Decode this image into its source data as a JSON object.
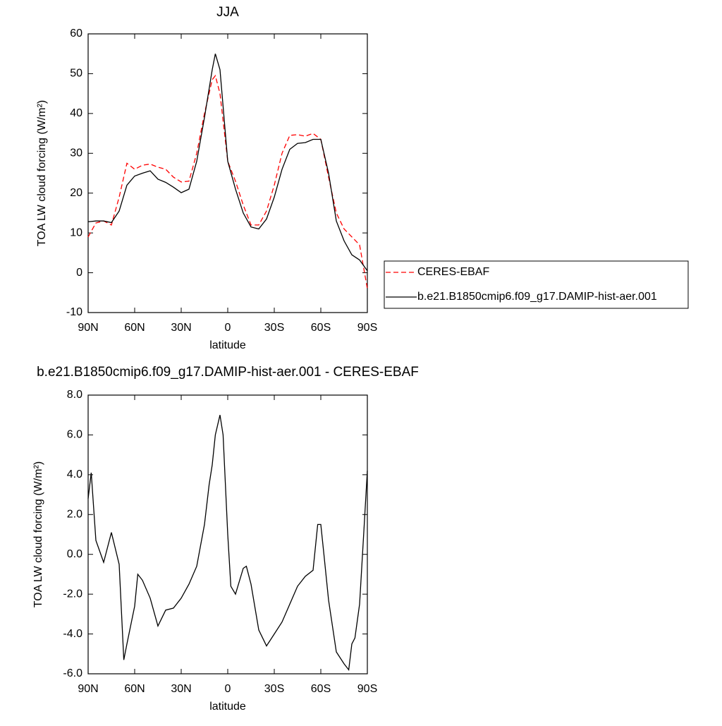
{
  "chart_data": [
    {
      "type": "line",
      "title": "JJA",
      "x_label": "latitude",
      "y_label": "TOA LW cloud forcing (W/m²)",
      "x": [
        90,
        85,
        80,
        75,
        70,
        65,
        60,
        55,
        50,
        45,
        40,
        35,
        30,
        25,
        20,
        15,
        10,
        8,
        5,
        0,
        -5,
        -10,
        -15,
        -20,
        -25,
        -30,
        -35,
        -40,
        -45,
        -50,
        -55,
        -60,
        -65,
        -70,
        -75,
        -80,
        -85,
        -90
      ],
      "xlim": [
        90,
        -90
      ],
      "xticks": [
        {
          "value": 90,
          "label": "90N"
        },
        {
          "value": 60,
          "label": "60N"
        },
        {
          "value": 30,
          "label": "30N"
        },
        0,
        {
          "value": -30,
          "label": "30S"
        },
        {
          "value": -60,
          "label": "60S"
        },
        {
          "value": -90,
          "label": "90S"
        }
      ],
      "ylim": [
        -10,
        60
      ],
      "yticks": [
        -10,
        0,
        10,
        20,
        30,
        40,
        50,
        60
      ],
      "legend": "right",
      "series": [
        {
          "name": "CERES-EBAF",
          "color": "#ff0000",
          "dash": true,
          "values": [
            9,
            12.5,
            13,
            12,
            19,
            27.5,
            26,
            27,
            27.3,
            26.5,
            26,
            24,
            22.8,
            23,
            30,
            40,
            48.5,
            49.5,
            45,
            28,
            23,
            17,
            12,
            12,
            15.5,
            22,
            30,
            34.5,
            34.7,
            34.3,
            35,
            33.5,
            24,
            15,
            11,
            9,
            7,
            -4
          ]
        },
        {
          "name": "b.e21.B1850cmip6.f09_g17.DAMIP-hist-aer.001",
          "color": "#000000",
          "dash": false,
          "values": [
            12.8,
            13,
            13,
            12.6,
            15.5,
            22,
            24.3,
            25,
            25.6,
            23.5,
            22.7,
            21.5,
            20.1,
            21,
            28,
            39,
            51,
            55,
            51,
            28,
            21,
            15,
            11.5,
            11,
            13.5,
            19,
            26,
            31,
            32.5,
            32.7,
            33.5,
            33.5,
            25,
            13,
            8,
            4.5,
            3.2,
            0.5
          ]
        }
      ]
    },
    {
      "type": "line",
      "title": "b.e21.B1850cmip6.f09_g17.DAMIP-hist-aer.001 - CERES-EBAF",
      "x_label": "latitude",
      "y_label": "TOA LW cloud forcing (W/m²)",
      "x": [
        90,
        88,
        85,
        80,
        75,
        70,
        67,
        65,
        60,
        58,
        55,
        50,
        45,
        40,
        35,
        30,
        25,
        20,
        15,
        12,
        10,
        8,
        5,
        3,
        0,
        -2,
        -5,
        -10,
        -12,
        -15,
        -20,
        -25,
        -30,
        -35,
        -40,
        -45,
        -50,
        -55,
        -58,
        -60,
        -62,
        -65,
        -70,
        -75,
        -78,
        -80,
        -82,
        -85,
        -88,
        -90
      ],
      "xlim": [
        90,
        -90
      ],
      "xticks": [
        {
          "value": 90,
          "label": "90N"
        },
        {
          "value": 60,
          "label": "60N"
        },
        {
          "value": 30,
          "label": "30N"
        },
        0,
        {
          "value": -30,
          "label": "30S"
        },
        {
          "value": -60,
          "label": "60S"
        },
        {
          "value": -90,
          "label": "90S"
        }
      ],
      "ylim": [
        -6,
        8
      ],
      "yticks": [
        {
          "value": -6,
          "label": "-6.0"
        },
        {
          "value": -4,
          "label": "-4.0"
        },
        {
          "value": -2,
          "label": "-2.0"
        },
        {
          "value": 0,
          "label": "0.0"
        },
        {
          "value": 2,
          "label": "2.0"
        },
        {
          "value": 4,
          "label": "4.0"
        },
        {
          "value": 6,
          "label": "6.0"
        },
        {
          "value": 8,
          "label": "8.0"
        }
      ],
      "series": [
        {
          "color": "#000000",
          "dash": false,
          "values": [
            2.8,
            4.1,
            0.7,
            -0.4,
            1.1,
            -0.5,
            -5.3,
            -4.5,
            -2.6,
            -1,
            -1.3,
            -2.2,
            -3.6,
            -2.8,
            -2.7,
            -2.2,
            -1.5,
            -0.6,
            1.5,
            3.5,
            4.5,
            6,
            7,
            6,
            1,
            -1.6,
            -2,
            -0.7,
            -0.6,
            -1.5,
            -3.8,
            -4.6,
            -4,
            -3.4,
            -2.5,
            -1.6,
            -1.1,
            -0.8,
            1.5,
            1.5,
            0,
            -2.3,
            -4.9,
            -5.5,
            -5.8,
            -4.5,
            -4.2,
            -2.5,
            1.5,
            4.2
          ]
        }
      ]
    }
  ]
}
